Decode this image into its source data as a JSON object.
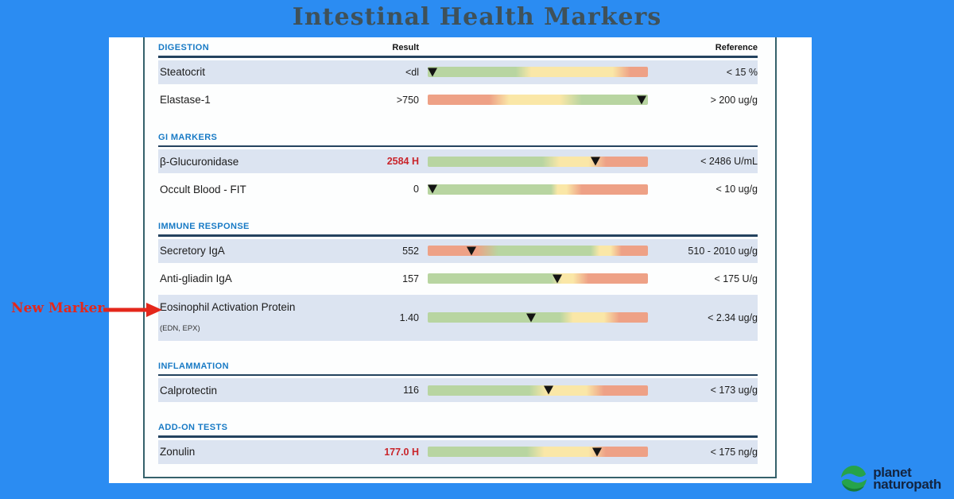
{
  "page": {
    "title": "Intestinal Health Markers",
    "background_color": "#2b8cf2"
  },
  "annotation": {
    "label": "New Marker",
    "color": "#e4271b",
    "arrow_icon": "right-arrow-icon"
  },
  "logo": {
    "line1": "planet",
    "line2": "naturopath",
    "icon": "planet-swirl-icon",
    "icon_green": "#26a34a",
    "icon_dark_green": "#157c38",
    "text_color": "#132440"
  },
  "report": {
    "column_labels": {
      "result": "Result",
      "reference": "Reference"
    },
    "palette": {
      "green": "#b8d5a1",
      "yellow": "#fae7a7",
      "red": "#eea186",
      "high_value": "#c9252b",
      "section_title": "#187ac5",
      "row_alt": "#dce4f1"
    },
    "sections": [
      {
        "name": "DIGESTION",
        "rows": [
          {
            "name": "Steatocrit",
            "result": "<dl",
            "high": false,
            "reference": "< 15 %",
            "bar": {
              "segments": [
                [
                  "green",
                  0,
                  40
                ],
                [
                  "yellow",
                  47,
                  84
                ],
                [
                  "red",
                  92,
                  100
                ]
              ],
              "marker_pct": 2
            }
          },
          {
            "name": "Elastase-1",
            "result": ">750",
            "high": false,
            "reference": "> 200 ug/g",
            "bar": {
              "segments": [
                [
                  "red",
                  0,
                  28
                ],
                [
                  "yellow",
                  37,
                  60
                ],
                [
                  "green",
                  70,
                  100
                ]
              ],
              "marker_pct": 97
            }
          }
        ]
      },
      {
        "name": "GI MARKERS",
        "rows": [
          {
            "name": "β-Glucuronidase",
            "result": "2584 H",
            "high": true,
            "reference": "< 2486 U/mL",
            "bar": {
              "segments": [
                [
                  "green",
                  0,
                  52
                ],
                [
                  "yellow",
                  60,
                  73
                ],
                [
                  "red",
                  81,
                  100
                ]
              ],
              "marker_pct": 76
            }
          },
          {
            "name": "Occult Blood - FIT",
            "result": "0",
            "high": false,
            "reference": "< 10 ug/g",
            "bar": {
              "segments": [
                [
                  "green",
                  0,
                  56
                ],
                [
                  "yellow",
                  59,
                  63
                ],
                [
                  "red",
                  70,
                  100
                ]
              ],
              "marker_pct": 2
            }
          }
        ]
      },
      {
        "name": "IMMUNE RESPONSE",
        "rows": [
          {
            "name": "Secretory IgA",
            "result": "552",
            "high": false,
            "reference": "510 - 2010 ug/g",
            "bar": {
              "segments": [
                [
                  "red",
                  0,
                  22
                ],
                [
                  "green",
                  32,
                  74
                ],
                [
                  "yellow",
                  78,
                  83
                ],
                [
                  "red",
                  88,
                  100
                ]
              ],
              "marker_pct": 20
            }
          },
          {
            "name": "Anti-gliadin IgA",
            "result": "157",
            "high": false,
            "reference": "< 175 U/g",
            "bar": {
              "segments": [
                [
                  "green",
                  0,
                  56
                ],
                [
                  "yellow",
                  61,
                  66
                ],
                [
                  "red",
                  73,
                  100
                ]
              ],
              "marker_pct": 59
            }
          },
          {
            "name": "Eosinophil Activation Protein",
            "sub": "(EDN, EPX)",
            "result": "1.40",
            "high": false,
            "reference": "< 2.34 ug/g",
            "bar": {
              "segments": [
                [
                  "green",
                  0,
                  60
                ],
                [
                  "yellow",
                  66,
                  80
                ],
                [
                  "red",
                  87,
                  100
                ]
              ],
              "marker_pct": 47
            }
          }
        ]
      },
      {
        "name": "INFLAMMATION",
        "rows": [
          {
            "name": "Calprotectin",
            "result": "116",
            "high": false,
            "reference": "< 173 ug/g",
            "bar": {
              "segments": [
                [
                  "green",
                  0,
                  46
                ],
                [
                  "yellow",
                  54,
                  72
                ],
                [
                  "red",
                  80,
                  100
                ]
              ],
              "marker_pct": 55
            }
          }
        ]
      },
      {
        "name": "ADD-ON TESTS",
        "rows": [
          {
            "name": "Zonulin",
            "result": "177.0 H",
            "high": true,
            "reference": "< 175 ng/g",
            "bar": {
              "segments": [
                [
                  "green",
                  0,
                  45
                ],
                [
                  "yellow",
                  53,
                  73
                ],
                [
                  "red",
                  81,
                  100
                ]
              ],
              "marker_pct": 77
            }
          }
        ]
      }
    ]
  }
}
